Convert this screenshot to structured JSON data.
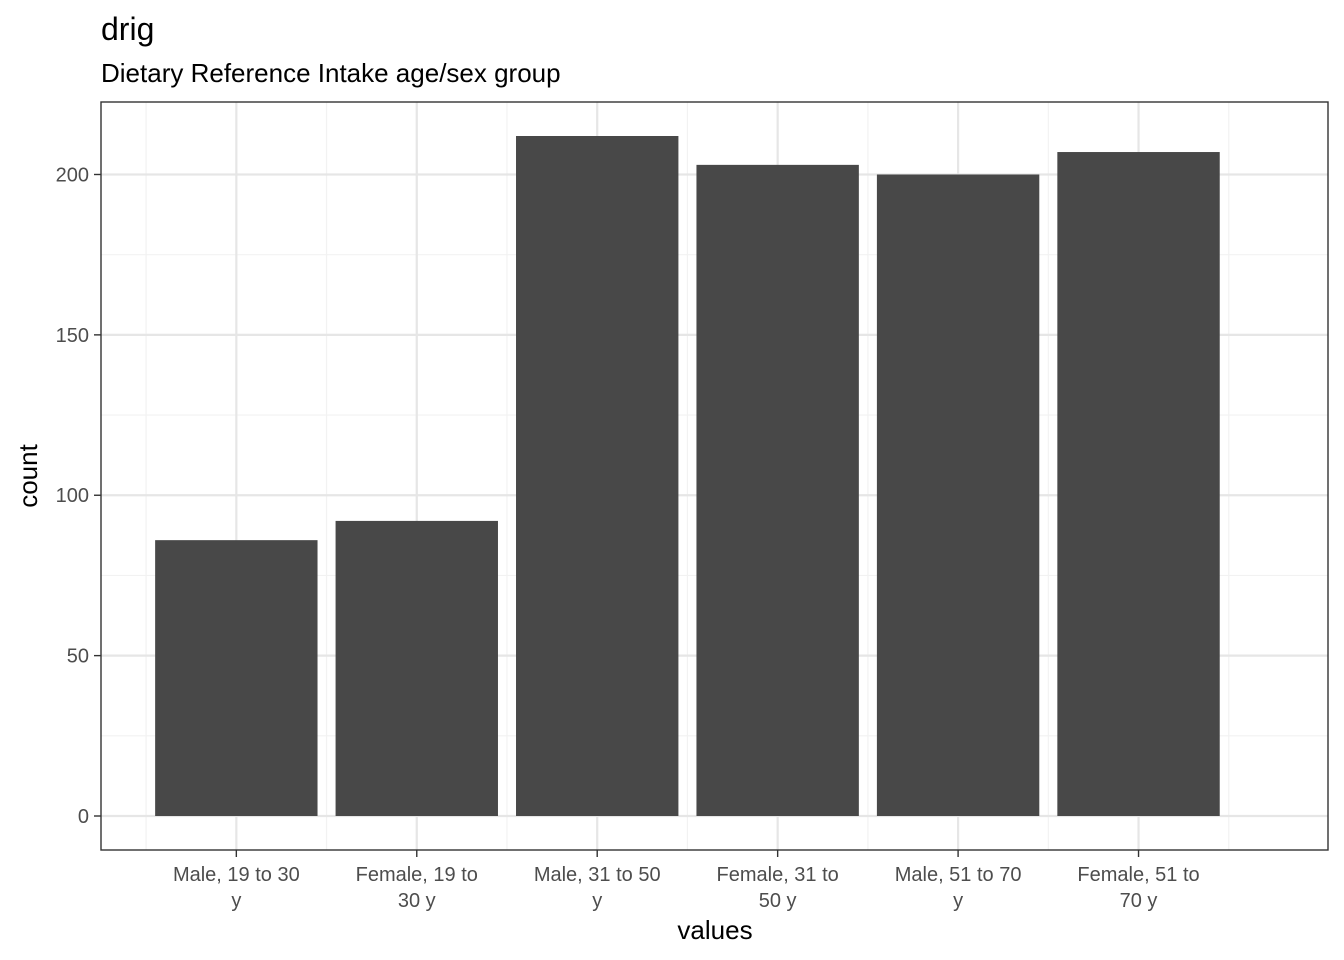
{
  "chart_data": {
    "type": "bar",
    "title": "drig",
    "subtitle": "Dietary Reference Intake age/sex group",
    "xlabel": "values",
    "ylabel": "count",
    "categories": [
      [
        "Male, 19 to 30",
        "y"
      ],
      [
        "Female, 19 to",
        "30 y"
      ],
      [
        "Male, 31 to 50",
        "y"
      ],
      [
        "Female, 31 to",
        "50 y"
      ],
      [
        "Male, 51 to 70",
        "y"
      ],
      [
        "Female, 51 to",
        "70 y"
      ]
    ],
    "values": [
      86,
      92,
      212,
      203,
      200,
      207
    ],
    "yticks": [
      0,
      50,
      100,
      150,
      200
    ],
    "ylim": [
      -10.6,
      222.6
    ],
    "grid": true,
    "colors": {
      "bar": "#484848",
      "grid_major": "#e6e6e6",
      "grid_minor": "#f2f2f2",
      "panel_border": "#333333",
      "tick_text": "#4d4d4d"
    }
  }
}
